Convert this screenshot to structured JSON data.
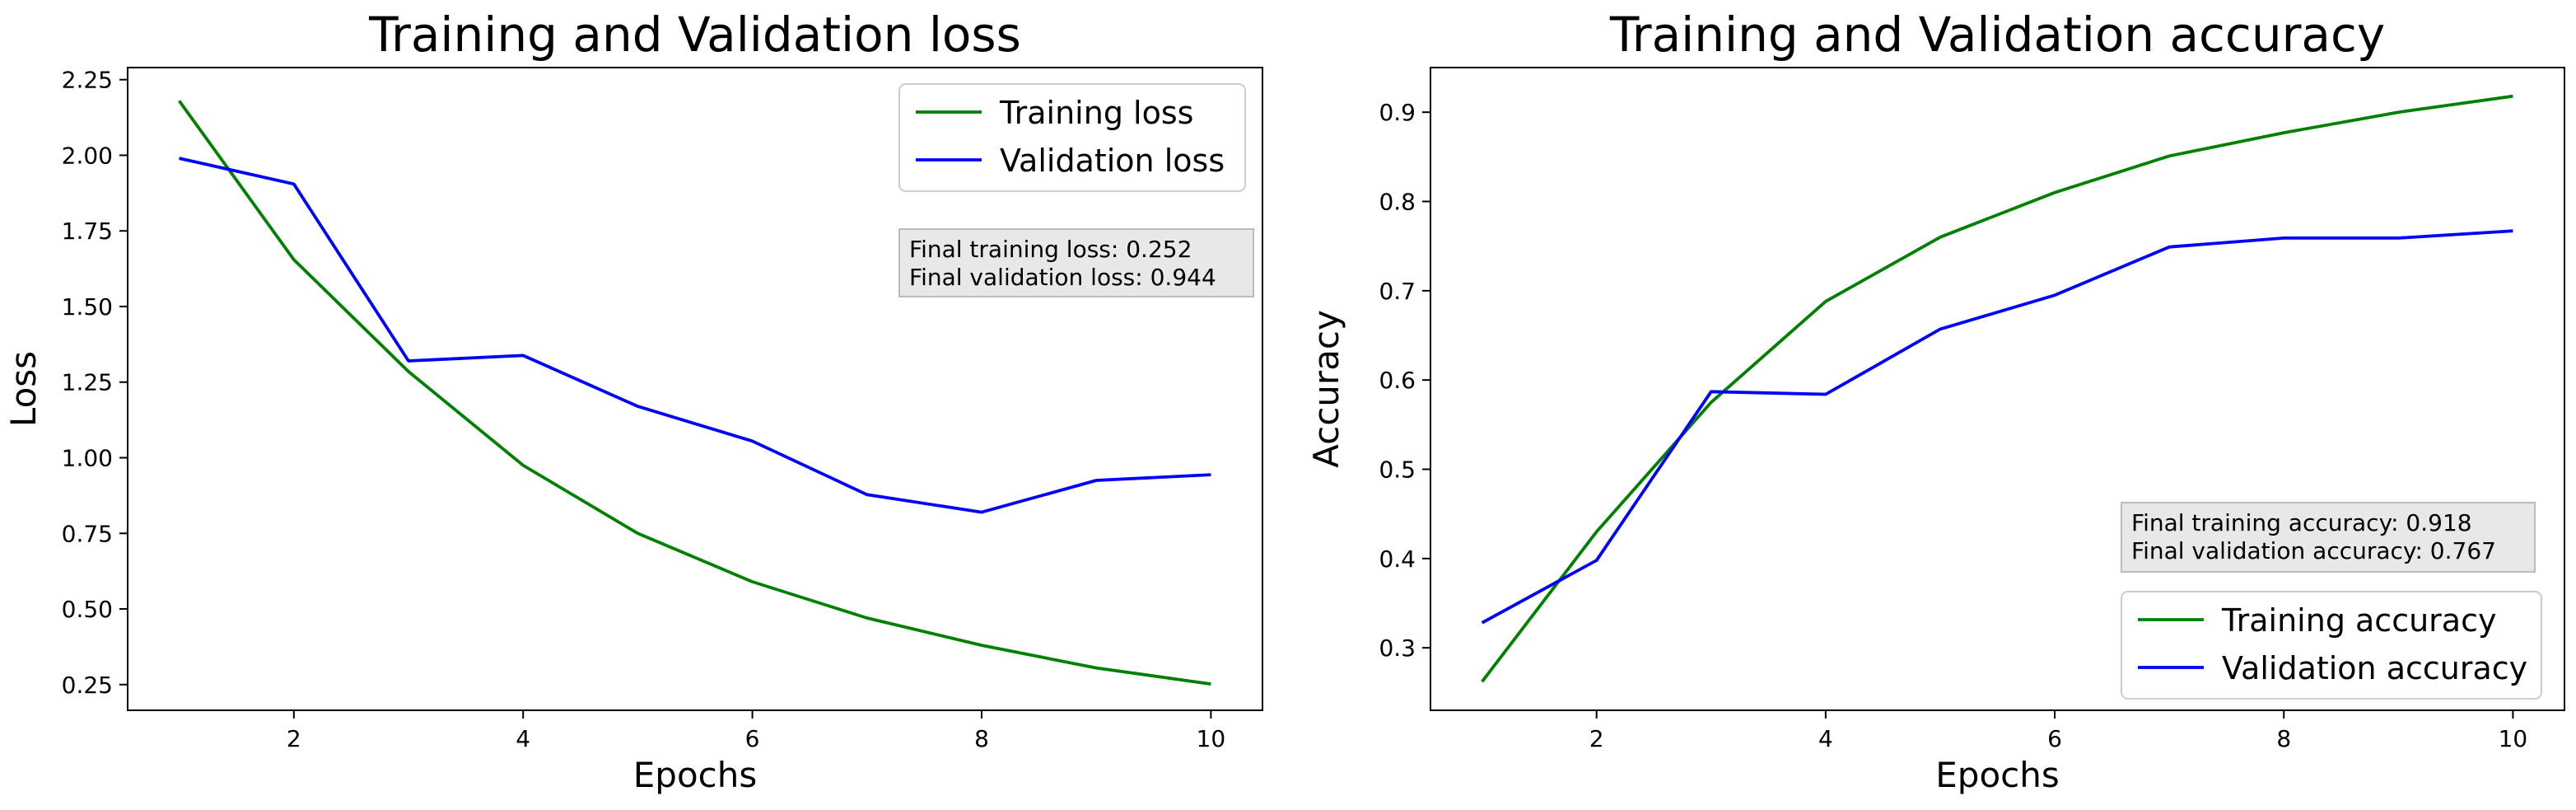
{
  "colors": {
    "training": "#008000",
    "validation": "#0000ff",
    "annotation_bg": "#e8e8e8",
    "annotation_border": "#bbbbbb"
  },
  "chart_data": [
    {
      "type": "line",
      "title": "Training and Validation loss",
      "xlabel": "Epochs",
      "ylabel": "Loss",
      "xlim": [
        0.55,
        10.45
      ],
      "ylim": [
        0.165,
        2.29
      ],
      "xticks": [
        2,
        4,
        6,
        8,
        10
      ],
      "yticks": [
        0.25,
        0.5,
        0.75,
        1.0,
        1.25,
        1.5,
        1.75,
        2.0,
        2.25
      ],
      "ytick_labels": [
        "0.25",
        "0.50",
        "0.75",
        "1.00",
        "1.25",
        "1.50",
        "1.75",
        "2.00",
        "2.25"
      ],
      "grid": false,
      "legend_position": "top-right",
      "x": [
        1,
        2,
        3,
        4,
        5,
        6,
        7,
        8,
        9,
        10
      ],
      "series": [
        {
          "name": "Training loss",
          "color": "#008000",
          "values": [
            2.18,
            1.655,
            1.285,
            0.975,
            0.75,
            0.59,
            0.47,
            0.38,
            0.305,
            0.252
          ]
        },
        {
          "name": "Validation loss",
          "color": "#0000ff",
          "values": [
            1.99,
            1.905,
            1.32,
            1.338,
            1.17,
            1.055,
            0.878,
            0.82,
            0.925,
            0.944
          ]
        }
      ],
      "annotation": [
        "Final training loss: 0.252",
        "Final validation loss: 0.944"
      ],
      "annotation_position": "upper-right"
    },
    {
      "type": "line",
      "title": "Training and Validation accuracy",
      "xlabel": "Epochs",
      "ylabel": "Accuracy",
      "xlim": [
        0.55,
        10.45
      ],
      "ylim": [
        0.23,
        0.95
      ],
      "xticks": [
        2,
        4,
        6,
        8,
        10
      ],
      "yticks": [
        0.3,
        0.4,
        0.5,
        0.6,
        0.7,
        0.8,
        0.9
      ],
      "ytick_labels": [
        "0.3",
        "0.4",
        "0.5",
        "0.6",
        "0.7",
        "0.8",
        "0.9"
      ],
      "grid": false,
      "legend_position": "bottom-right",
      "x": [
        1,
        2,
        3,
        4,
        5,
        6,
        7,
        8,
        9,
        10
      ],
      "series": [
        {
          "name": "Training accuracy",
          "color": "#008000",
          "values": [
            0.262,
            0.43,
            0.575,
            0.688,
            0.76,
            0.81,
            0.851,
            0.877,
            0.9,
            0.918
          ]
        },
        {
          "name": "Validation accuracy",
          "color": "#0000ff",
          "values": [
            0.328,
            0.398,
            0.587,
            0.584,
            0.657,
            0.695,
            0.749,
            0.759,
            0.759,
            0.767
          ]
        }
      ],
      "annotation": [
        "Final training accuracy: 0.918",
        "Final validation accuracy: 0.767"
      ],
      "annotation_position": "lower-right"
    }
  ]
}
